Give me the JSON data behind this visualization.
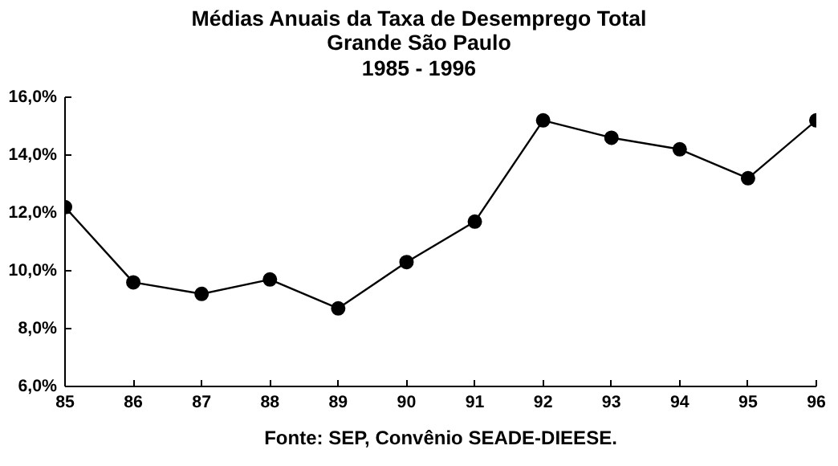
{
  "chart_data": {
    "type": "line",
    "title": "Médias Anuais da Taxa de Desemprego Total\nGrande São Paulo\n1985 - 1996",
    "x": [
      85,
      86,
      87,
      88,
      89,
      90,
      91,
      92,
      93,
      94,
      95,
      96
    ],
    "series": [
      {
        "color": "#000000",
        "values": [
          12.2,
          9.6,
          9.2,
          9.7,
          8.7,
          10.3,
          11.7,
          15.2,
          14.6,
          14.2,
          13.2,
          15.2
        ]
      }
    ],
    "xlim": [
      85,
      96
    ],
    "xticks": [
      85,
      86,
      87,
      88,
      89,
      90,
      91,
      92,
      93,
      94,
      95,
      96
    ],
    "ylim": [
      6,
      16
    ],
    "yticks": [
      {
        "value": 6,
        "label": "6,0%"
      },
      {
        "value": 8,
        "label": "8,0%"
      },
      {
        "value": 10,
        "label": "10,0%"
      },
      {
        "value": 12,
        "label": "12,0%"
      },
      {
        "value": 14,
        "label": "14,0%"
      },
      {
        "value": 16,
        "label": "16,0%"
      }
    ],
    "grid": false,
    "marker": "circle",
    "line_style": "solid",
    "annotations": [
      "Fonte: SEP, Convênio SEADE-DIEESE."
    ]
  }
}
